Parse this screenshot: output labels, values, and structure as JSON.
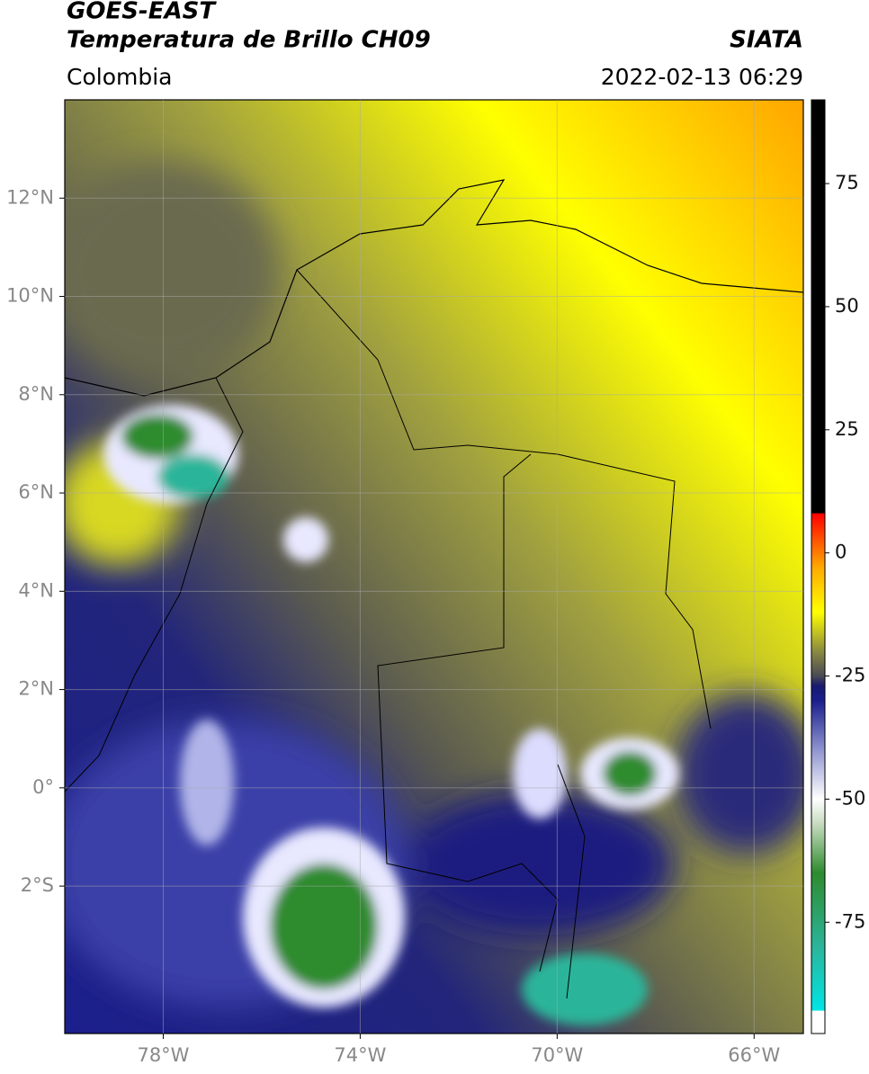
{
  "header": {
    "satellite": "GOES-EAST",
    "product": "Temperatura de Brillo CH09",
    "source": "SIATA",
    "region": "Colombia",
    "datetime": "2022-02-13 06:29"
  },
  "map": {
    "xlim": [
      -80,
      -65
    ],
    "ylim": [
      -5,
      14
    ],
    "xticks": [
      {
        "value": -78,
        "label": "78°W"
      },
      {
        "value": -74,
        "label": "74°W"
      },
      {
        "value": -70,
        "label": "70°W"
      },
      {
        "value": -66,
        "label": "66°W"
      }
    ],
    "yticks": [
      {
        "value": 12,
        "label": "12°N"
      },
      {
        "value": 10,
        "label": "10°N"
      },
      {
        "value": 8,
        "label": "8°N"
      },
      {
        "value": 6,
        "label": "6°N"
      },
      {
        "value": 4,
        "label": "4°N"
      },
      {
        "value": 2,
        "label": "2°N"
      },
      {
        "value": 0,
        "label": "0°"
      },
      {
        "value": -2,
        "label": "2°S"
      }
    ],
    "grid": true
  },
  "colorbar": {
    "lim": [
      -97.6,
      92
    ],
    "ticks": [
      75,
      50,
      25,
      0,
      -25,
      -50,
      -75
    ],
    "colors": [
      [
        -97.6,
        "#ffffff"
      ],
      [
        -93,
        "#ffffff"
      ],
      [
        -92.9,
        "#00e5e5"
      ],
      [
        -80,
        "#2bb59a"
      ],
      [
        -65,
        "#2e8b2e"
      ],
      [
        -55,
        "#c8dcc0"
      ],
      [
        -50,
        "#ffffff"
      ],
      [
        -40,
        "#8f94d0"
      ],
      [
        -30,
        "#1b1f8c"
      ],
      [
        -27,
        "#1a1a70"
      ],
      [
        -25,
        "#4a4a55"
      ],
      [
        -20,
        "#8a8a40"
      ],
      [
        -12,
        "#ffff00"
      ],
      [
        -3,
        "#ffaa00"
      ],
      [
        8,
        "#ff0000"
      ],
      [
        8.1,
        "#000000"
      ],
      [
        92,
        "#000000"
      ]
    ]
  }
}
